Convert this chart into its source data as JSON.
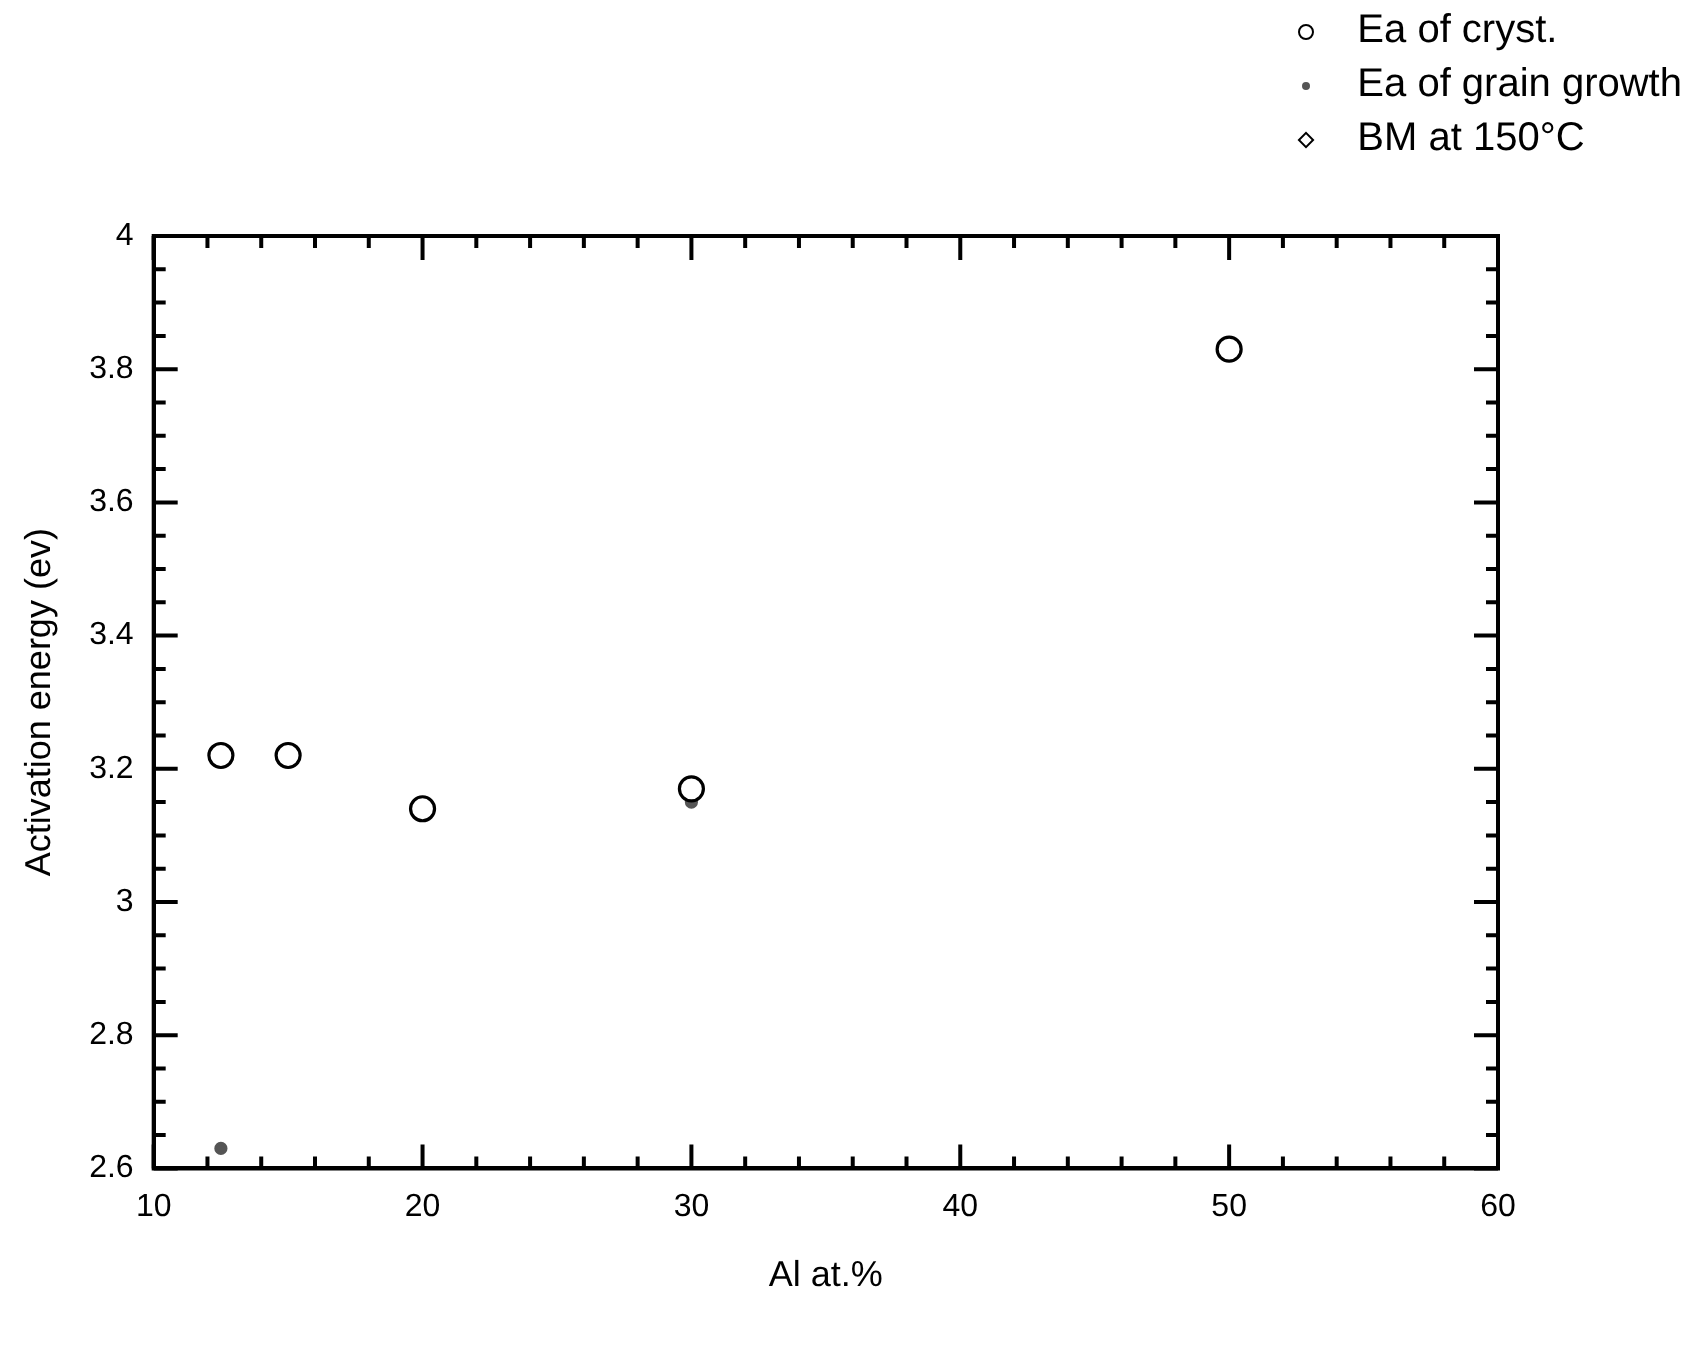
{
  "chart_data": {
    "type": "scatter",
    "xlabel": "Al at.%",
    "ylabel": "Activation energy (ev)",
    "xlim": [
      10,
      60
    ],
    "ylim": [
      2.6,
      4
    ],
    "xticks": [
      10,
      {
        "value": 12,
        "label": null
      },
      {
        "value": 14,
        "label": null
      },
      {
        "value": 16,
        "label": null
      },
      {
        "value": 18,
        "label": null
      },
      20,
      {
        "value": 22,
        "label": null
      },
      {
        "value": 24,
        "label": null
      },
      {
        "value": 26,
        "label": null
      },
      {
        "value": 28,
        "label": null
      },
      30,
      {
        "value": 32,
        "label": null
      },
      {
        "value": 34,
        "label": null
      },
      {
        "value": 36,
        "label": null
      },
      {
        "value": 38,
        "label": null
      },
      40,
      {
        "value": 42,
        "label": null
      },
      {
        "value": 44,
        "label": null
      },
      {
        "value": 46,
        "label": null
      },
      {
        "value": 48,
        "label": null
      },
      50,
      {
        "value": 52,
        "label": null
      },
      {
        "value": 54,
        "label": null
      },
      {
        "value": 56,
        "label": null
      },
      {
        "value": 58,
        "label": null
      },
      60
    ],
    "yticks": [
      2.6,
      {
        "value": 2.65,
        "label": null
      },
      {
        "value": 2.7,
        "label": null
      },
      {
        "value": 2.75,
        "label": null
      },
      2.8,
      {
        "value": 2.85,
        "label": null
      },
      {
        "value": 2.9,
        "label": null
      },
      {
        "value": 2.95,
        "label": null
      },
      3,
      {
        "value": 3.05,
        "label": null
      },
      {
        "value": 3.1,
        "label": null
      },
      {
        "value": 3.15,
        "label": null
      },
      3.2,
      {
        "value": 3.25,
        "label": null
      },
      {
        "value": 3.3,
        "label": null
      },
      {
        "value": 3.35,
        "label": null
      },
      3.4,
      {
        "value": 3.45,
        "label": null
      },
      {
        "value": 3.5,
        "label": null
      },
      {
        "value": 3.55,
        "label": null
      },
      3.6,
      {
        "value": 3.65,
        "label": null
      },
      {
        "value": 3.7,
        "label": null
      },
      {
        "value": 3.75,
        "label": null
      },
      3.8,
      {
        "value": 3.85,
        "label": null
      },
      {
        "value": 3.9,
        "label": null
      },
      {
        "value": 3.95,
        "label": null
      },
      4
    ],
    "grid": false,
    "legend": "top right",
    "series": [
      {
        "name": "Ea of cryst.",
        "color": "#000000",
        "marker": "circle",
        "x": [
          12.5,
          15,
          20,
          30,
          50
        ],
        "values": [
          3.22,
          3.22,
          3.14,
          3.17,
          3.83
        ]
      },
      {
        "name": "Ea of grain growth",
        "color": "#555555",
        "marker": "dot",
        "x": [
          12.5,
          30
        ],
        "values": [
          2.63,
          3.15
        ]
      },
      {
        "name": "BM at 150°C",
        "color": "#000000",
        "marker": "diamond"
      }
    ]
  }
}
